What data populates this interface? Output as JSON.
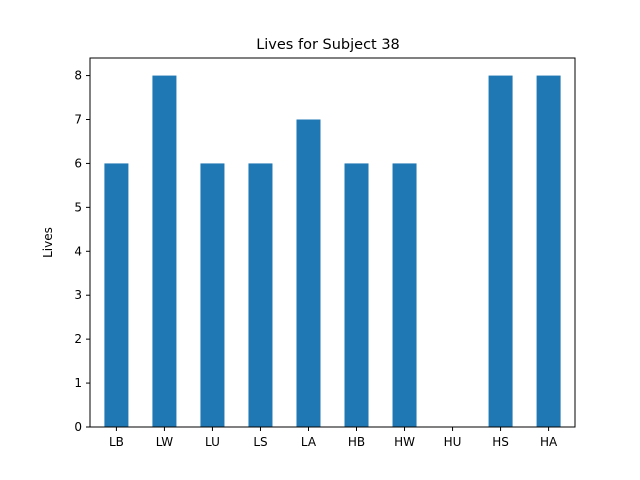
{
  "chart_data": {
    "type": "bar",
    "title": "Lives for Subject 38",
    "xlabel": "",
    "ylabel": "Lives",
    "categories": [
      "LB",
      "LW",
      "LU",
      "LS",
      "LA",
      "HB",
      "HW",
      "HU",
      "HS",
      "HA"
    ],
    "values": [
      6,
      8,
      6,
      6,
      7,
      6,
      6,
      0,
      8,
      8
    ],
    "ylim": [
      0,
      8.4
    ],
    "yticks": [
      0,
      1,
      2,
      3,
      4,
      5,
      6,
      7,
      8
    ],
    "grid": false,
    "legend": "none",
    "bar_color": "#1f77b4"
  }
}
